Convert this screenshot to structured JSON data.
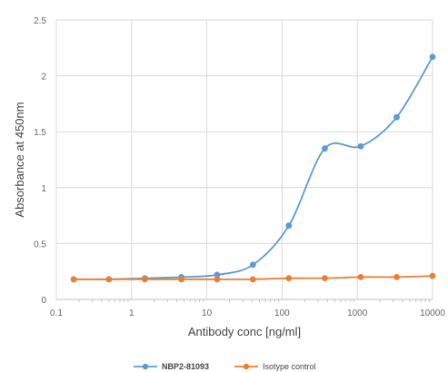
{
  "chart_data": {
    "type": "line",
    "title": "",
    "xlabel": "Antibody conc [ng/ml]",
    "ylabel": "Absorbance at 450nm",
    "x_scale": "log",
    "xlim": [
      0.1,
      10000
    ],
    "ylim": [
      0,
      2.5
    ],
    "x_tick_labels": [
      "0.1",
      "1",
      "10",
      "100",
      "1000",
      "10000"
    ],
    "y_tick_labels": [
      "0",
      "0.5",
      "1",
      "1.5",
      "2",
      "2.5"
    ],
    "grid": true,
    "legend_position": "bottom-center",
    "series": [
      {
        "name": "NBP2-81093",
        "color": "#5B9BD5",
        "x": [
          0.17,
          0.5,
          1.5,
          4.6,
          13.7,
          41,
          123,
          370,
          1111,
          3333,
          10000
        ],
        "y": [
          0.18,
          0.18,
          0.19,
          0.2,
          0.22,
          0.31,
          0.66,
          1.35,
          1.37,
          1.63,
          2.17
        ]
      },
      {
        "name": "Isotype control",
        "color": "#ED7D31",
        "x": [
          0.17,
          0.5,
          1.5,
          4.6,
          13.7,
          41,
          123,
          370,
          1111,
          3333,
          10000
        ],
        "y": [
          0.18,
          0.18,
          0.18,
          0.18,
          0.18,
          0.18,
          0.19,
          0.19,
          0.2,
          0.2,
          0.21
        ]
      }
    ]
  }
}
